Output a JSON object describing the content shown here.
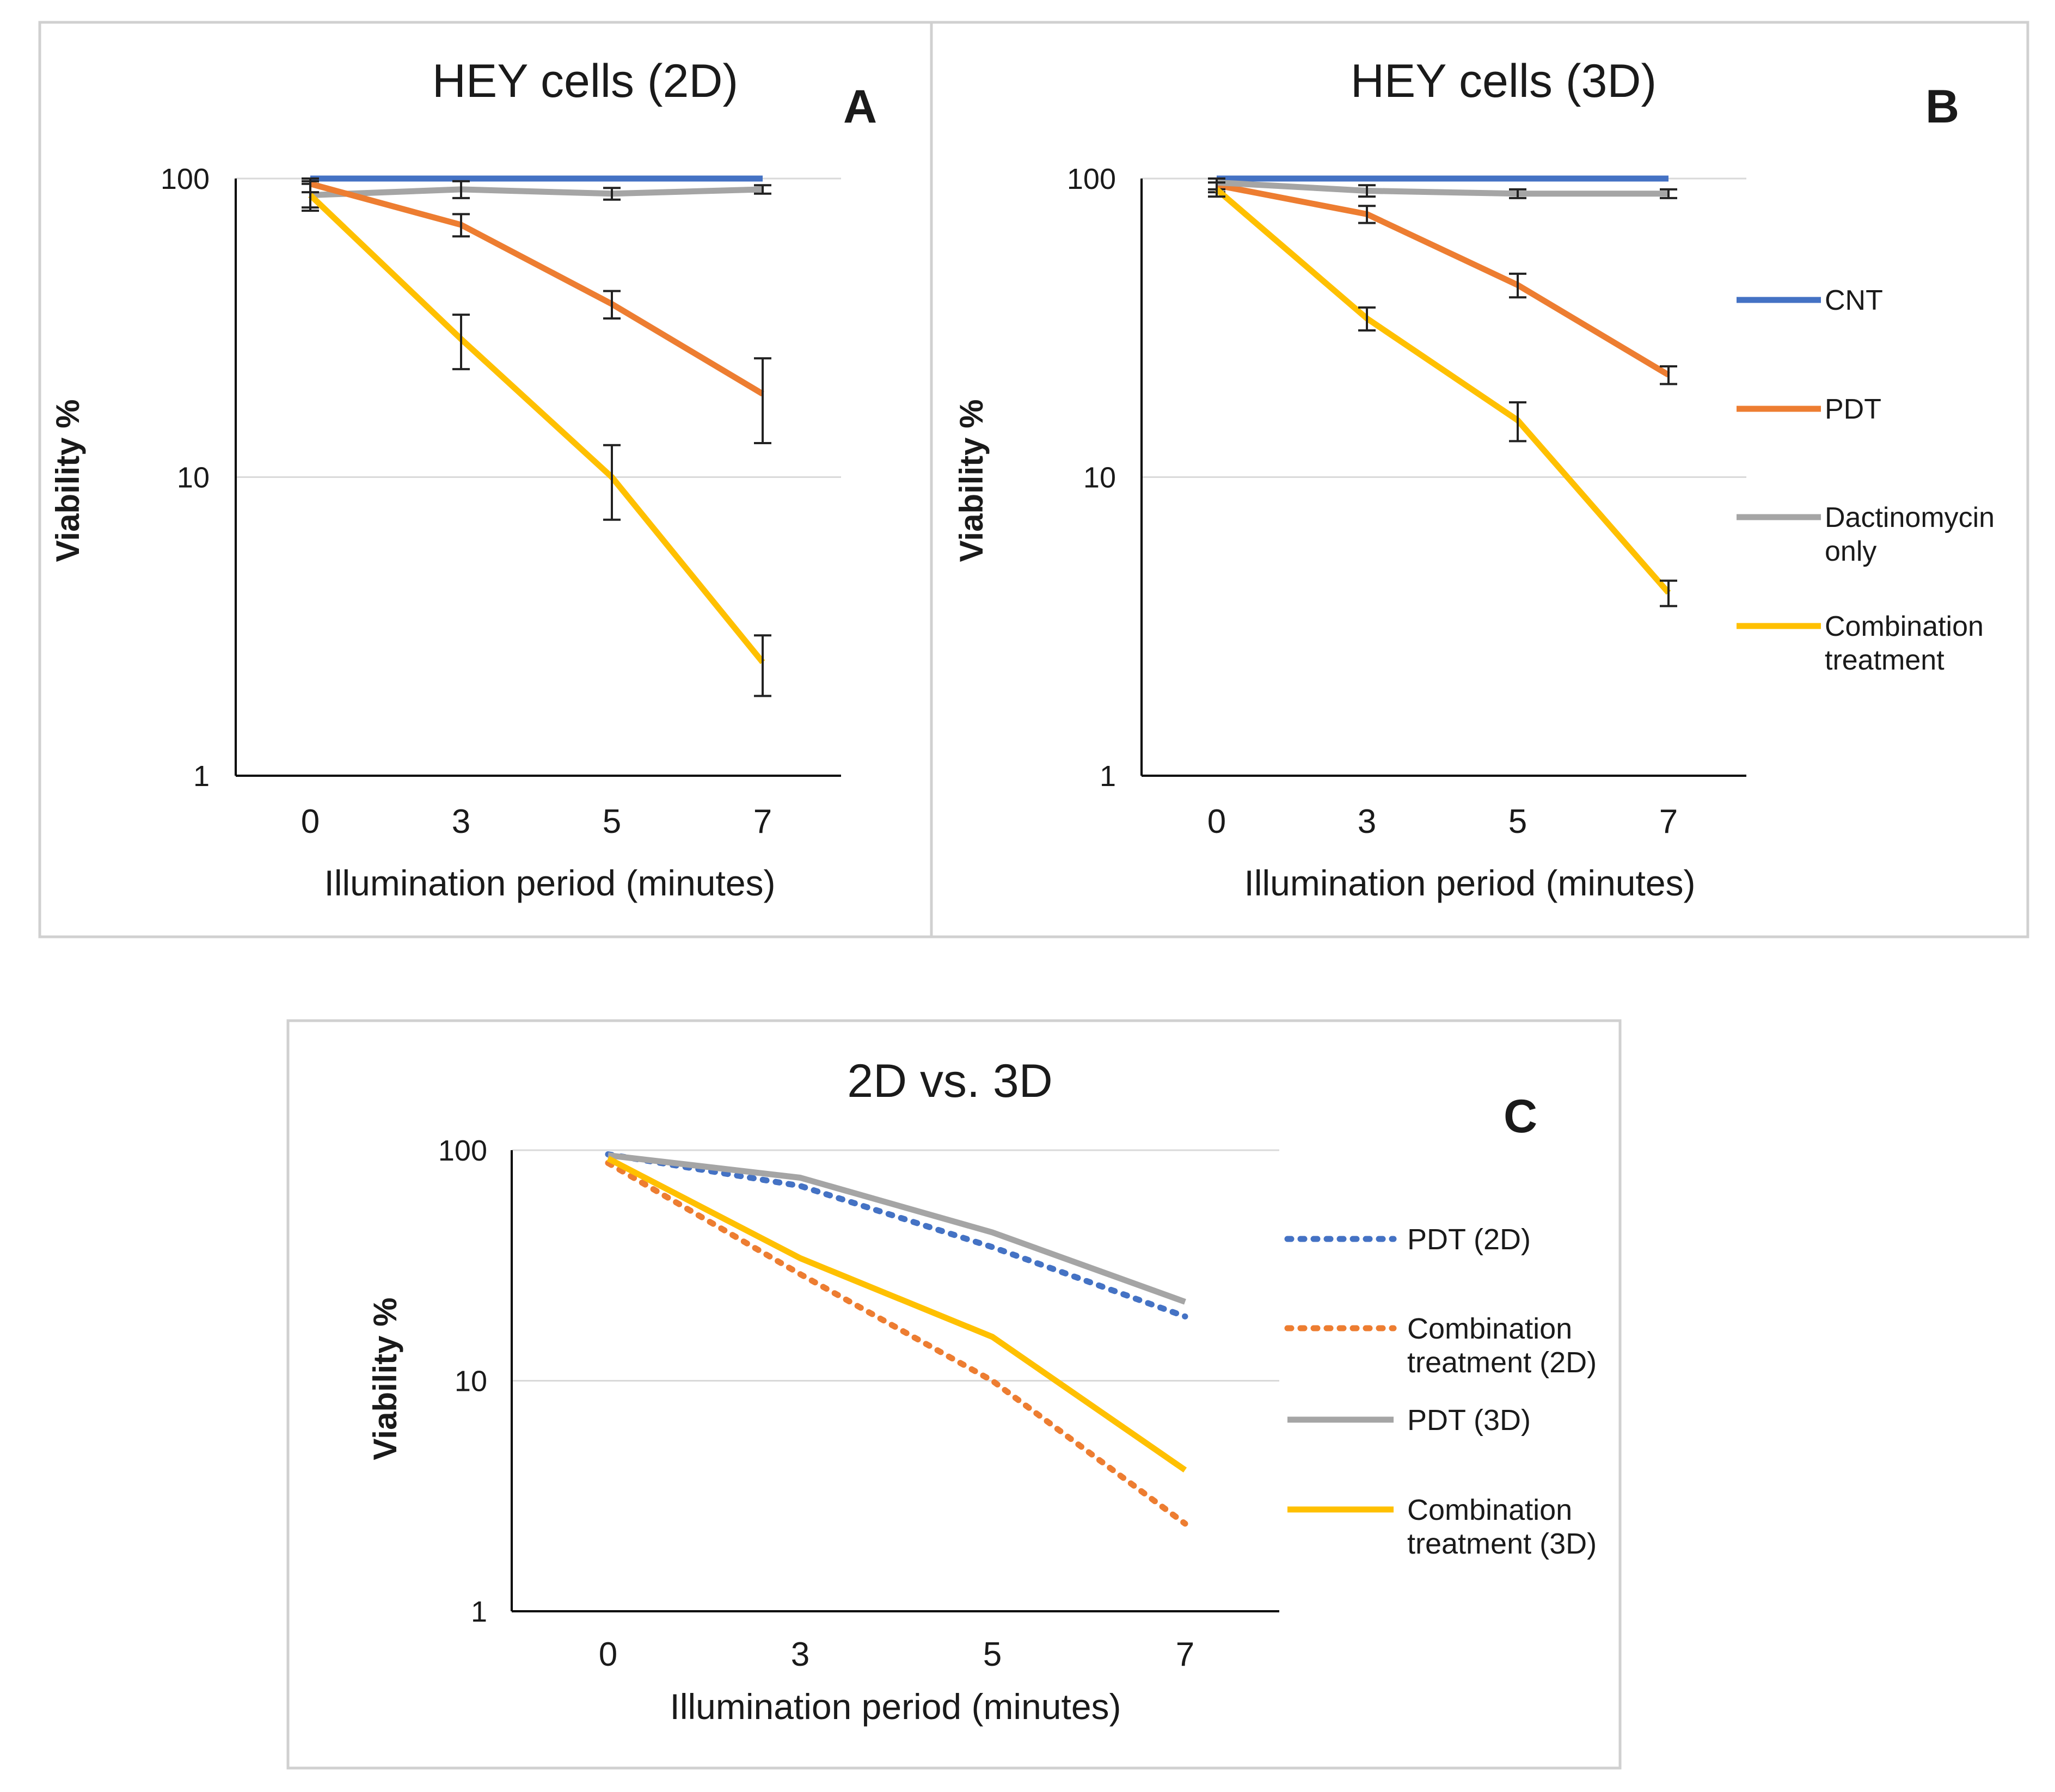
{
  "chart_data": [
    {
      "id": "A",
      "panel_letter": "A",
      "type": "line",
      "title": "HEY cells (2D)",
      "xlabel": "Illumination period (minutes)",
      "ylabel": "Viability %",
      "yscale": "log",
      "ylim": [
        1,
        100
      ],
      "yticks": [
        1,
        10,
        100
      ],
      "ytick_labels": [
        "1",
        "10",
        "100"
      ],
      "categories": [
        "0",
        "3",
        "5",
        "7"
      ],
      "grid": true,
      "series": [
        {
          "name": "CNT",
          "color": "#4472C4",
          "dash": "solid",
          "values": [
            100,
            100,
            100,
            100
          ],
          "err": [
            0,
            0,
            0,
            0
          ]
        },
        {
          "name": "Dactinomycin only",
          "color": "#A5A5A5",
          "dash": "solid",
          "values": [
            88,
            92,
            89,
            92
          ],
          "err": [
            8,
            6,
            4,
            3
          ]
        },
        {
          "name": "PDT",
          "color": "#ED7D31",
          "dash": "solid",
          "values": [
            96,
            70,
            38,
            19
          ],
          "err": [
            6,
            6,
            4,
            6
          ]
        },
        {
          "name": "Combination treatment",
          "color": "#FFC000",
          "dash": "solid",
          "values": [
            88,
            29,
            10,
            2.4
          ],
          "err": [
            10,
            6,
            2.8,
            0.55
          ]
        }
      ]
    },
    {
      "id": "B",
      "panel_letter": "B",
      "type": "line",
      "title": "HEY cells (3D)",
      "xlabel": "Illumination period (minutes)",
      "ylabel": "Viability %",
      "yscale": "log",
      "ylim": [
        1,
        100
      ],
      "yticks": [
        1,
        10,
        100
      ],
      "ytick_labels": [
        "1",
        "10",
        "100"
      ],
      "categories": [
        "0",
        "3",
        "5",
        "7"
      ],
      "grid": true,
      "legend_position": "right",
      "series": [
        {
          "name": "CNT",
          "color": "#4472C4",
          "dash": "solid",
          "values": [
            100,
            100,
            100,
            100
          ],
          "err": [
            0,
            0,
            0,
            0
          ]
        },
        {
          "name": "PDT",
          "color": "#ED7D31",
          "dash": "solid",
          "values": [
            95,
            76,
            44,
            22
          ],
          "err": [
            5,
            5,
            4,
            1.5
          ]
        },
        {
          "name": "Dactinomycin only",
          "color": "#A5A5A5",
          "dash": "solid",
          "values": [
            97,
            91,
            89,
            89
          ],
          "err": [
            5,
            4,
            3,
            3
          ]
        },
        {
          "name": "Combination treatment",
          "color": "#FFC000",
          "dash": "solid",
          "values": [
            92,
            34,
            15.5,
            4.1
          ],
          "err": [
            5,
            3,
            2.3,
            0.4
          ]
        }
      ],
      "legend": [
        {
          "lines": [
            "CNT"
          ],
          "color": "#4472C4",
          "dash": "solid"
        },
        {
          "lines": [
            "PDT"
          ],
          "color": "#ED7D31",
          "dash": "solid"
        },
        {
          "lines": [
            "Dactinomycin",
            "only"
          ],
          "color": "#A5A5A5",
          "dash": "solid"
        },
        {
          "lines": [
            "Combination",
            "treatment"
          ],
          "color": "#FFC000",
          "dash": "solid"
        }
      ]
    },
    {
      "id": "C",
      "panel_letter": "C",
      "type": "line",
      "title": "2D vs. 3D",
      "xlabel": "Illumination period (minutes)",
      "ylabel": "Viability %",
      "yscale": "log",
      "ylim": [
        1,
        100
      ],
      "yticks": [
        1,
        10,
        100
      ],
      "ytick_labels": [
        "1",
        "10",
        "100"
      ],
      "categories": [
        "0",
        "3",
        "5",
        "7"
      ],
      "grid": true,
      "legend_position": "right",
      "series": [
        {
          "name": "PDT (2D)",
          "color": "#4472C4",
          "dash": "dotted",
          "values": [
            96,
            70,
            38,
            19
          ]
        },
        {
          "name": "Combination treatment (2D)",
          "color": "#ED7D31",
          "dash": "dotted",
          "values": [
            88,
            29,
            10,
            2.4
          ]
        },
        {
          "name": "PDT (3D)",
          "color": "#A5A5A5",
          "dash": "solid",
          "values": [
            95,
            76,
            44,
            22
          ]
        },
        {
          "name": "Combination treatment (3D)",
          "color": "#FFC000",
          "dash": "solid",
          "values": [
            92,
            34,
            15.5,
            4.1
          ]
        }
      ],
      "legend": [
        {
          "lines": [
            "PDT (2D)"
          ],
          "color": "#4472C4",
          "dash": "dotted"
        },
        {
          "lines": [
            "Combination",
            "treatment (2D)"
          ],
          "color": "#ED7D31",
          "dash": "dotted"
        },
        {
          "lines": [
            "PDT (3D)"
          ],
          "color": "#A5A5A5",
          "dash": "solid"
        },
        {
          "lines": [
            "Combination",
            "treatment (3D)"
          ],
          "color": "#FFC000",
          "dash": "solid"
        }
      ]
    }
  ]
}
